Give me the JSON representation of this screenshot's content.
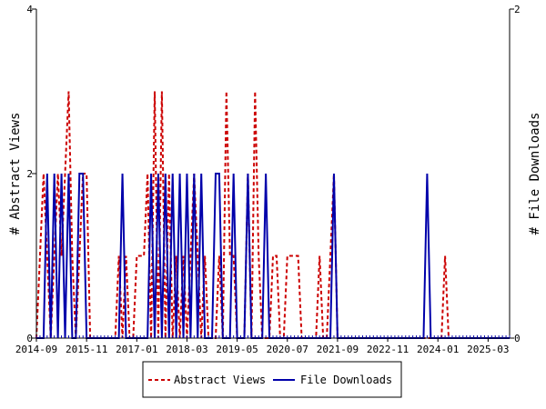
{
  "chart_data": {
    "type": "line",
    "x_tick_labels": [
      "2014-09",
      "2015-11",
      "2017-01",
      "2018-03",
      "2019-05",
      "2020-07",
      "2021-09",
      "2022-11",
      "2024-01",
      "2025-03"
    ],
    "x_range": [
      "2014-09",
      "2025-09"
    ],
    "y_left": {
      "label": "# Abstract Views",
      "range": [
        0,
        4
      ],
      "ticks": [
        "0",
        "2",
        "4"
      ]
    },
    "y_right": {
      "label": "# File Downloads",
      "range": [
        0,
        2
      ],
      "ticks": [
        "0",
        "2"
      ]
    },
    "legend": {
      "position": "bottom"
    },
    "series": [
      {
        "name": "Abstract Views",
        "axis": "left",
        "color": "#cc0000",
        "style": "dashed",
        "points": [
          [
            "2014-09",
            0
          ],
          [
            "2014-10",
            1
          ],
          [
            "2014-11",
            2
          ],
          [
            "2014-12",
            1
          ],
          [
            "2015-01",
            0
          ],
          [
            "2015-02",
            1
          ],
          [
            "2015-03",
            2
          ],
          [
            "2015-04",
            1
          ],
          [
            "2015-05",
            2
          ],
          [
            "2015-06",
            3
          ],
          [
            "2015-07",
            1
          ],
          [
            "2015-08",
            0
          ],
          [
            "2015-09",
            1
          ],
          [
            "2015-10",
            2
          ],
          [
            "2015-11",
            2
          ],
          [
            "2015-12",
            0
          ],
          [
            "2016-01",
            0
          ],
          [
            "2016-02",
            0
          ],
          [
            "2016-03",
            0
          ],
          [
            "2016-04",
            0
          ],
          [
            "2016-05",
            0
          ],
          [
            "2016-06",
            0
          ],
          [
            "2016-07",
            0
          ],
          [
            "2016-08",
            1
          ],
          [
            "2016-09",
            0
          ],
          [
            "2016-10",
            1
          ],
          [
            "2016-11",
            0
          ],
          [
            "2016-12",
            0
          ],
          [
            "2017-01",
            1
          ],
          [
            "2017-02",
            1
          ],
          [
            "2017-03",
            1
          ],
          [
            "2017-04",
            2
          ],
          [
            "2017-05",
            0
          ],
          [
            "2017-06",
            3
          ],
          [
            "2017-07",
            0
          ],
          [
            "2017-08",
            3
          ],
          [
            "2017-09",
            0
          ],
          [
            "2017-10",
            2
          ],
          [
            "2017-11",
            0
          ],
          [
            "2017-12",
            1
          ],
          [
            "2018-01",
            0
          ],
          [
            "2018-02",
            1
          ],
          [
            "2018-03",
            0
          ],
          [
            "2018-04",
            1
          ],
          [
            "2018-05",
            2
          ],
          [
            "2018-06",
            1
          ],
          [
            "2018-07",
            0
          ],
          [
            "2018-08",
            1
          ],
          [
            "2018-09",
            0
          ],
          [
            "2018-10",
            0
          ],
          [
            "2018-11",
            0
          ],
          [
            "2018-12",
            1
          ],
          [
            "2019-01",
            0
          ],
          [
            "2019-02",
            3
          ],
          [
            "2019-03",
            1
          ],
          [
            "2019-04",
            1
          ],
          [
            "2019-05",
            0
          ],
          [
            "2019-06",
            0
          ],
          [
            "2019-07",
            0
          ],
          [
            "2019-08",
            2
          ],
          [
            "2019-09",
            0
          ],
          [
            "2019-10",
            3
          ],
          [
            "2019-11",
            1
          ],
          [
            "2019-12",
            0
          ],
          [
            "2020-01",
            0
          ],
          [
            "2020-02",
            0
          ],
          [
            "2020-03",
            1
          ],
          [
            "2020-04",
            1
          ],
          [
            "2020-05",
            0
          ],
          [
            "2020-06",
            0
          ],
          [
            "2020-07",
            1
          ],
          [
            "2020-08",
            1
          ],
          [
            "2020-09",
            1
          ],
          [
            "2020-10",
            1
          ],
          [
            "2020-11",
            0
          ],
          [
            "2020-12",
            0
          ],
          [
            "2021-01",
            0
          ],
          [
            "2021-02",
            0
          ],
          [
            "2021-03",
            0
          ],
          [
            "2021-04",
            1
          ],
          [
            "2021-05",
            0
          ],
          [
            "2021-06",
            0
          ],
          [
            "2021-07",
            1
          ],
          [
            "2021-08",
            2
          ],
          [
            "2021-09",
            0
          ],
          [
            "2021-10",
            0
          ],
          [
            "2021-11",
            0
          ],
          [
            "2021-12",
            0
          ],
          [
            "2022-01",
            0
          ],
          [
            "2022-02",
            0
          ],
          [
            "2022-03",
            0
          ],
          [
            "2022-04",
            0
          ],
          [
            "2022-05",
            0
          ],
          [
            "2022-06",
            0
          ],
          [
            "2022-07",
            0
          ],
          [
            "2022-08",
            0
          ],
          [
            "2022-09",
            0
          ],
          [
            "2022-10",
            0
          ],
          [
            "2022-11",
            0
          ],
          [
            "2022-12",
            0
          ],
          [
            "2023-01",
            0
          ],
          [
            "2023-02",
            0
          ],
          [
            "2023-03",
            0
          ],
          [
            "2023-04",
            0
          ],
          [
            "2023-05",
            0
          ],
          [
            "2023-06",
            0
          ],
          [
            "2023-07",
            0
          ],
          [
            "2023-08",
            0
          ],
          [
            "2023-09",
            0
          ],
          [
            "2023-10",
            0
          ],
          [
            "2023-11",
            0
          ],
          [
            "2023-12",
            0
          ],
          [
            "2024-01",
            0
          ],
          [
            "2024-02",
            0
          ],
          [
            "2024-03",
            1
          ],
          [
            "2024-04",
            0
          ],
          [
            "2024-05",
            0
          ],
          [
            "2024-06",
            0
          ],
          [
            "2024-07",
            0
          ],
          [
            "2024-08",
            0
          ],
          [
            "2024-09",
            0
          ],
          [
            "2024-10",
            0
          ],
          [
            "2024-11",
            0
          ],
          [
            "2024-12",
            0
          ],
          [
            "2025-01",
            0
          ],
          [
            "2025-02",
            0
          ],
          [
            "2025-03",
            0
          ],
          [
            "2025-04",
            0
          ],
          [
            "2025-05",
            0
          ],
          [
            "2025-06",
            0
          ],
          [
            "2025-07",
            0
          ],
          [
            "2025-08",
            0
          ],
          [
            "2025-09",
            0
          ]
        ]
      },
      {
        "name": "File Downloads",
        "axis": "right",
        "color": "#0000aa",
        "style": "solid",
        "points": [
          [
            "2014-09",
            0
          ],
          [
            "2014-10",
            0
          ],
          [
            "2014-11",
            0
          ],
          [
            "2014-12",
            1
          ],
          [
            "2015-01",
            0
          ],
          [
            "2015-02",
            1
          ],
          [
            "2015-03",
            0
          ],
          [
            "2015-04",
            1
          ],
          [
            "2015-05",
            0
          ],
          [
            "2015-06",
            1
          ],
          [
            "2015-07",
            0
          ],
          [
            "2015-08",
            0
          ],
          [
            "2015-09",
            1
          ],
          [
            "2015-10",
            1
          ],
          [
            "2015-11",
            0
          ],
          [
            "2015-12",
            0
          ],
          [
            "2016-01",
            0
          ],
          [
            "2016-02",
            0
          ],
          [
            "2016-03",
            0
          ],
          [
            "2016-04",
            0
          ],
          [
            "2016-05",
            0
          ],
          [
            "2016-06",
            0
          ],
          [
            "2016-07",
            0
          ],
          [
            "2016-08",
            0
          ],
          [
            "2016-09",
            1
          ],
          [
            "2016-10",
            0
          ],
          [
            "2016-11",
            0
          ],
          [
            "2016-12",
            0
          ],
          [
            "2017-01",
            0
          ],
          [
            "2017-02",
            0
          ],
          [
            "2017-03",
            0
          ],
          [
            "2017-04",
            0
          ],
          [
            "2017-05",
            1
          ],
          [
            "2017-06",
            0
          ],
          [
            "2017-07",
            1
          ],
          [
            "2017-08",
            0
          ],
          [
            "2017-09",
            1
          ],
          [
            "2017-10",
            0
          ],
          [
            "2017-11",
            1
          ],
          [
            "2017-12",
            0
          ],
          [
            "2018-01",
            1
          ],
          [
            "2018-02",
            0
          ],
          [
            "2018-03",
            1
          ],
          [
            "2018-04",
            0
          ],
          [
            "2018-05",
            1
          ],
          [
            "2018-06",
            0
          ],
          [
            "2018-07",
            1
          ],
          [
            "2018-08",
            0
          ],
          [
            "2018-09",
            0
          ],
          [
            "2018-10",
            0
          ],
          [
            "2018-11",
            1
          ],
          [
            "2018-12",
            1
          ],
          [
            "2019-01",
            0
          ],
          [
            "2019-02",
            0
          ],
          [
            "2019-03",
            0
          ],
          [
            "2019-04",
            1
          ],
          [
            "2019-05",
            0
          ],
          [
            "2019-06",
            0
          ],
          [
            "2019-07",
            0
          ],
          [
            "2019-08",
            1
          ],
          [
            "2019-09",
            0
          ],
          [
            "2019-10",
            0
          ],
          [
            "2019-11",
            0
          ],
          [
            "2019-12",
            0
          ],
          [
            "2020-01",
            1
          ],
          [
            "2020-02",
            0
          ],
          [
            "2020-03",
            0
          ],
          [
            "2020-04",
            0
          ],
          [
            "2020-05",
            0
          ],
          [
            "2020-06",
            0
          ],
          [
            "2020-07",
            0
          ],
          [
            "2020-08",
            0
          ],
          [
            "2020-09",
            0
          ],
          [
            "2020-10",
            0
          ],
          [
            "2020-11",
            0
          ],
          [
            "2020-12",
            0
          ],
          [
            "2021-01",
            0
          ],
          [
            "2021-02",
            0
          ],
          [
            "2021-03",
            0
          ],
          [
            "2021-04",
            0
          ],
          [
            "2021-05",
            0
          ],
          [
            "2021-06",
            0
          ],
          [
            "2021-07",
            0
          ],
          [
            "2021-08",
            1
          ],
          [
            "2021-09",
            0
          ],
          [
            "2021-10",
            0
          ],
          [
            "2021-11",
            0
          ],
          [
            "2021-12",
            0
          ],
          [
            "2022-01",
            0
          ],
          [
            "2022-02",
            0
          ],
          [
            "2022-03",
            0
          ],
          [
            "2022-04",
            0
          ],
          [
            "2022-05",
            0
          ],
          [
            "2022-06",
            0
          ],
          [
            "2022-07",
            0
          ],
          [
            "2022-08",
            0
          ],
          [
            "2022-09",
            0
          ],
          [
            "2022-10",
            0
          ],
          [
            "2022-11",
            0
          ],
          [
            "2022-12",
            0
          ],
          [
            "2023-01",
            0
          ],
          [
            "2023-02",
            0
          ],
          [
            "2023-03",
            0
          ],
          [
            "2023-04",
            0
          ],
          [
            "2023-05",
            0
          ],
          [
            "2023-06",
            0
          ],
          [
            "2023-07",
            0
          ],
          [
            "2023-08",
            0
          ],
          [
            "2023-09",
            0
          ],
          [
            "2023-10",
            1
          ],
          [
            "2023-11",
            0
          ],
          [
            "2023-12",
            0
          ],
          [
            "2024-01",
            0
          ],
          [
            "2024-02",
            0
          ],
          [
            "2024-03",
            0
          ],
          [
            "2024-04",
            0
          ],
          [
            "2024-05",
            0
          ],
          [
            "2024-06",
            0
          ],
          [
            "2024-07",
            0
          ],
          [
            "2024-08",
            0
          ],
          [
            "2024-09",
            0
          ],
          [
            "2024-10",
            0
          ],
          [
            "2024-11",
            0
          ],
          [
            "2024-12",
            0
          ],
          [
            "2025-01",
            0
          ],
          [
            "2025-02",
            0
          ],
          [
            "2025-03",
            0
          ],
          [
            "2025-04",
            0
          ],
          [
            "2025-05",
            0
          ],
          [
            "2025-06",
            0
          ],
          [
            "2025-07",
            0
          ],
          [
            "2025-08",
            0
          ],
          [
            "2025-09",
            0
          ]
        ]
      }
    ]
  }
}
